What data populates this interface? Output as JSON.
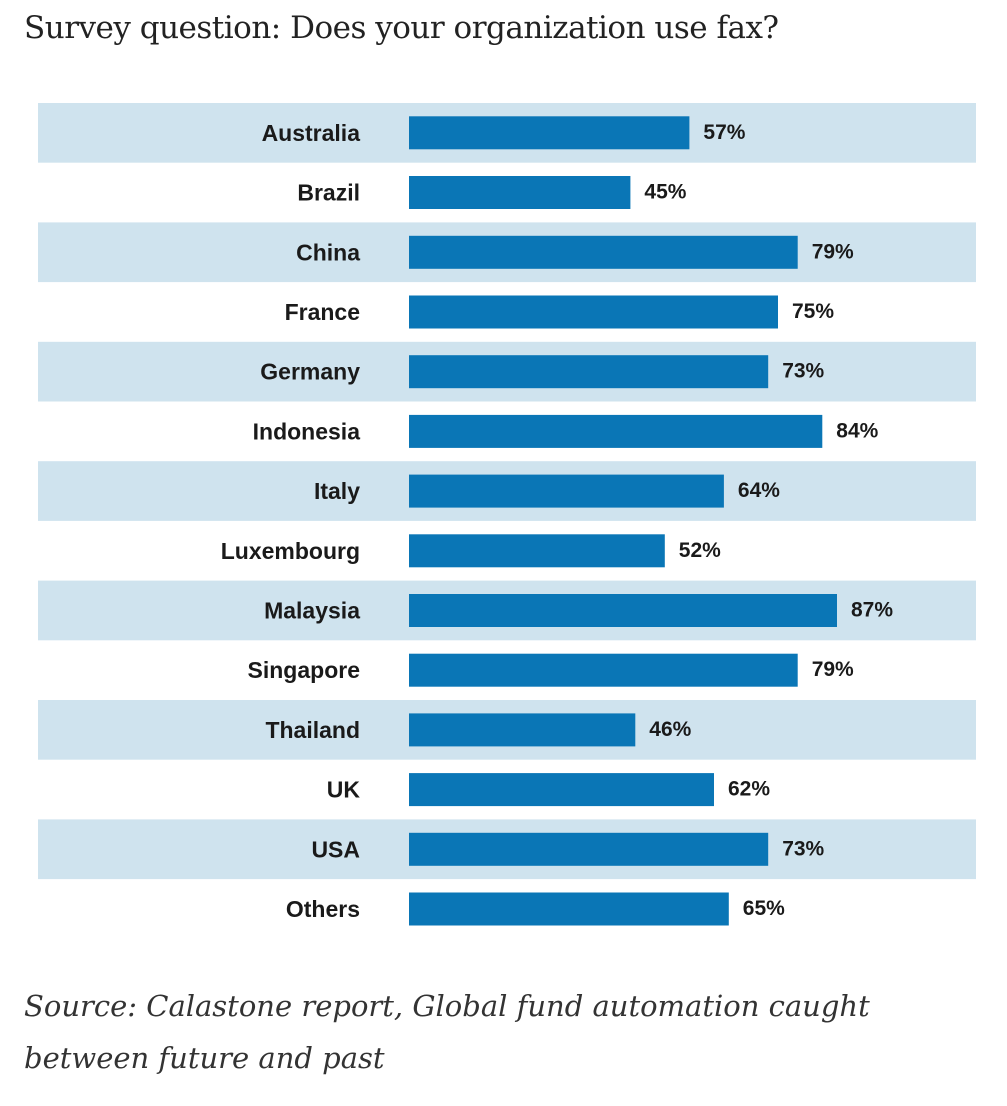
{
  "title": "Survey question: Does your organization use fax?",
  "chart_data": {
    "type": "bar",
    "orientation": "horizontal",
    "categories": [
      "Australia",
      "Brazil",
      "China",
      "France",
      "Germany",
      "Indonesia",
      "Italy",
      "Luxembourg",
      "Malaysia",
      "Singapore",
      "Thailand",
      "UK",
      "USA",
      "Others"
    ],
    "values": [
      57,
      45,
      79,
      75,
      73,
      84,
      64,
      52,
      87,
      79,
      46,
      62,
      73,
      65
    ],
    "value_labels": [
      "57%",
      "45%",
      "79%",
      "75%",
      "73%",
      "84%",
      "64%",
      "52%",
      "87%",
      "79%",
      "46%",
      "62%",
      "73%",
      "65%"
    ],
    "unit": "%",
    "xlim": [
      0,
      100
    ],
    "bar_color": "#0a76b6",
    "stripe_color": "#cfe3ee"
  },
  "source": "Source: Calastone report, Global fund automation caught between future and past"
}
